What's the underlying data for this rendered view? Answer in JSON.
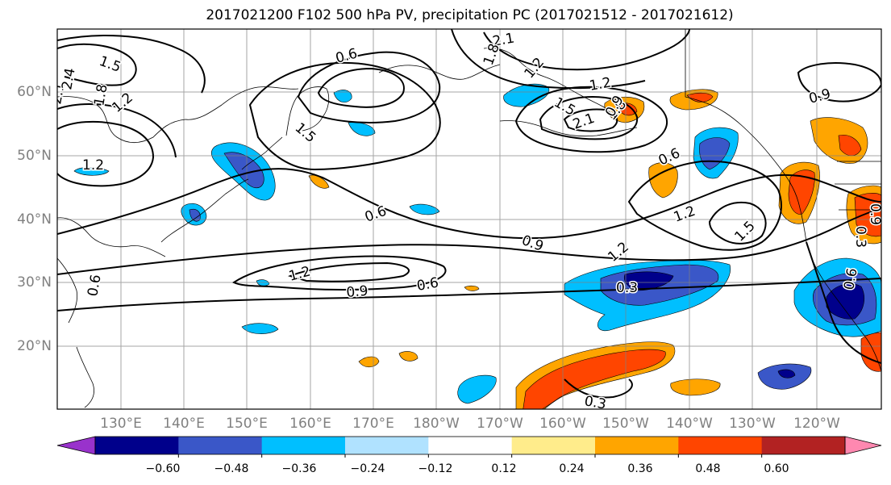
{
  "title": "2017021200 F102 500 hPa PV, precipitation PC (2017021512 - 2017021612)",
  "map": {
    "lat_labels": [
      "60°N",
      "50°N",
      "40°N",
      "30°N",
      "20°N"
    ],
    "lon_labels": [
      "130°E",
      "140°E",
      "150°E",
      "160°E",
      "170°E",
      "180°W",
      "170°W",
      "160°W",
      "150°W",
      "140°W",
      "130°W",
      "120°W"
    ],
    "contour_labels": [
      {
        "text": "1.5"
      },
      {
        "text": "2.1"
      },
      {
        "text": "2.4"
      },
      {
        "text": "1.8"
      },
      {
        "text": "1.2"
      },
      {
        "text": "1.2"
      },
      {
        "text": "0.6"
      },
      {
        "text": "0.6"
      },
      {
        "text": "0.6"
      },
      {
        "text": "1.5"
      },
      {
        "text": "2.1"
      },
      {
        "text": "1.8"
      },
      {
        "text": "1.2"
      },
      {
        "text": "1.2"
      },
      {
        "text": "1.5"
      },
      {
        "text": "2.1"
      },
      {
        "text": "1.8"
      },
      {
        "text": "0.9"
      },
      {
        "text": "0.6"
      },
      {
        "text": "1.2"
      },
      {
        "text": "1.5"
      },
      {
        "text": "0.9"
      },
      {
        "text": "1.2"
      },
      {
        "text": "0.9"
      },
      {
        "text": "0.6"
      },
      {
        "text": "0.3"
      },
      {
        "text": "1.2"
      },
      {
        "text": "0.9"
      },
      {
        "text": "0.3"
      },
      {
        "text": "0.6"
      },
      {
        "text": "0.3"
      },
      {
        "text": "0.9"
      }
    ]
  },
  "colorbar": {
    "colors": [
      "#9932cc",
      "#00008b",
      "#3a57c8",
      "#00bfff",
      "#b0e2ff",
      "#ffffff",
      "#ffec8b",
      "#ffa500",
      "#ff4500",
      "#b22222",
      "#ff88b0"
    ],
    "ticks": [
      "−0.60",
      "−0.48",
      "−0.36",
      "−0.24",
      "−0.12",
      "0.12",
      "0.24",
      "0.36",
      "0.48",
      "0.60"
    ]
  }
}
